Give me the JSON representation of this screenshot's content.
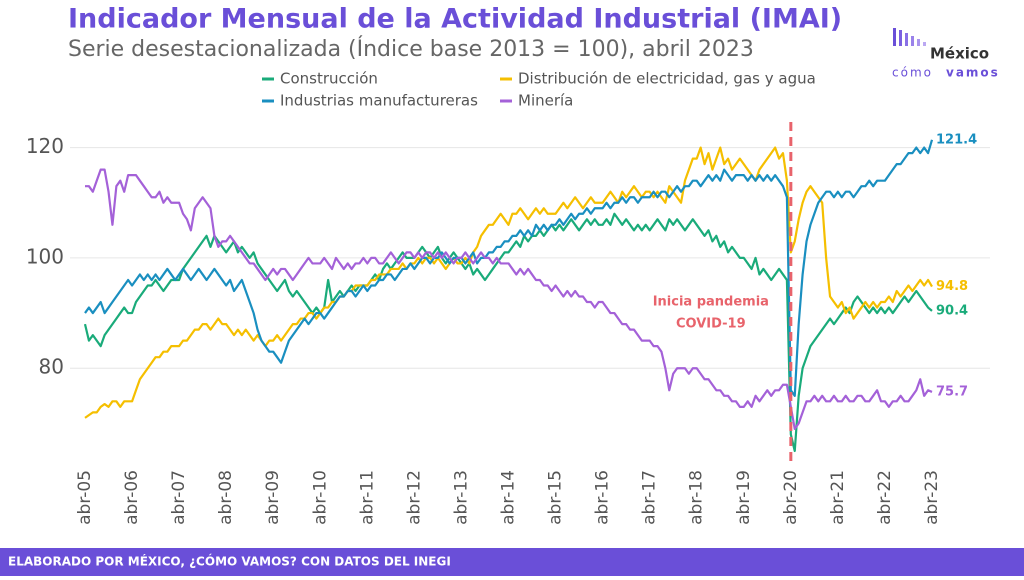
{
  "header": {
    "logo": {
      "top": "México",
      "bottom_left": "cómo",
      "bottom_right": "vamos"
    }
  },
  "footer": {
    "text": "ELABORADO POR MÉXICO, ¿CÓMO VAMOS? CON DATOS DEL INEGI"
  },
  "chart_data": {
    "type": "line",
    "title": "Indicador Mensual de la Actividad Industrial (IMAI)",
    "subtitle": "Serie desestacionalizada (Índice base 2013 = 100), abril 2023",
    "annotation": {
      "text": [
        "Inicia pandemia",
        "COVID-19"
      ],
      "x": "abr-20"
    },
    "ylim": [
      63,
      125
    ],
    "yticks": [
      80,
      100,
      120
    ],
    "grid": true,
    "categories": [
      "abr-05",
      null,
      null,
      null,
      null,
      null,
      null,
      null,
      null,
      null,
      null,
      null,
      "abr-06",
      null,
      null,
      null,
      null,
      null,
      null,
      null,
      null,
      null,
      null,
      null,
      "abr-07",
      null,
      null,
      null,
      null,
      null,
      null,
      null,
      null,
      null,
      null,
      null,
      "abr-08",
      null,
      null,
      null,
      null,
      null,
      null,
      null,
      null,
      null,
      null,
      null,
      "abr-09",
      null,
      null,
      null,
      null,
      null,
      null,
      null,
      null,
      null,
      null,
      null,
      "abr-10",
      null,
      null,
      null,
      null,
      null,
      null,
      null,
      null,
      null,
      null,
      null,
      "abr-11",
      null,
      null,
      null,
      null,
      null,
      null,
      null,
      null,
      null,
      null,
      null,
      "abr-12",
      null,
      null,
      null,
      null,
      null,
      null,
      null,
      null,
      null,
      null,
      null,
      "abr-13",
      null,
      null,
      null,
      null,
      null,
      null,
      null,
      null,
      null,
      null,
      null,
      "abr-14",
      null,
      null,
      null,
      null,
      null,
      null,
      null,
      null,
      null,
      null,
      null,
      "abr-15",
      null,
      null,
      null,
      null,
      null,
      null,
      null,
      null,
      null,
      null,
      null,
      "abr-16",
      null,
      null,
      null,
      null,
      null,
      null,
      null,
      null,
      null,
      null,
      null,
      "abr-17",
      null,
      null,
      null,
      null,
      null,
      null,
      null,
      null,
      null,
      null,
      null,
      "abr-18",
      null,
      null,
      null,
      null,
      null,
      null,
      null,
      null,
      null,
      null,
      null,
      "abr-19",
      null,
      null,
      null,
      null,
      null,
      null,
      null,
      null,
      null,
      null,
      null,
      "abr-20",
      null,
      null,
      null,
      null,
      null,
      null,
      null,
      null,
      null,
      null,
      null,
      "abr-21",
      null,
      null,
      null,
      null,
      null,
      null,
      null,
      null,
      null,
      null,
      null,
      "abr-22",
      null,
      null,
      null,
      null,
      null,
      null,
      null,
      null,
      null,
      null,
      null,
      "abr-23"
    ],
    "series": [
      {
        "name": "Construcción",
        "color": "#1aab7a",
        "values": [
          88,
          85,
          86,
          85,
          84,
          86,
          87,
          88,
          89,
          90,
          91,
          90,
          90,
          92,
          93,
          94,
          95,
          95,
          96,
          95,
          94,
          95,
          96,
          96,
          96,
          98,
          99,
          100,
          101,
          102,
          103,
          104,
          102,
          104,
          103,
          102,
          101,
          102,
          103,
          101,
          102,
          101,
          100,
          101,
          99,
          98,
          97,
          96,
          95,
          94,
          95,
          96,
          94,
          93,
          94,
          93,
          92,
          91,
          90,
          91,
          90,
          91,
          96,
          92,
          93,
          94,
          93,
          94,
          95,
          94,
          95,
          95,
          95,
          96,
          97,
          96,
          98,
          99,
          98,
          99,
          100,
          101,
          100,
          100,
          100,
          101,
          102,
          101,
          100,
          101,
          102,
          100,
          99,
          100,
          101,
          100,
          99,
          98,
          99,
          97,
          98,
          97,
          96,
          97,
          98,
          99,
          100,
          101,
          101,
          102,
          103,
          102,
          104,
          103,
          104,
          104,
          105,
          104,
          105,
          106,
          105,
          106,
          105,
          106,
          107,
          106,
          105,
          106,
          107,
          106,
          107,
          106,
          106,
          107,
          106,
          108,
          107,
          106,
          107,
          106,
          105,
          106,
          105,
          106,
          105,
          106,
          107,
          106,
          105,
          107,
          106,
          107,
          106,
          105,
          106,
          107,
          106,
          105,
          104,
          105,
          103,
          104,
          102,
          103,
          101,
          102,
          101,
          100,
          100,
          99,
          98,
          100,
          97,
          98,
          97,
          96,
          97,
          98,
          97,
          96,
          68,
          65,
          75,
          80,
          82,
          84,
          85,
          86,
          87,
          88,
          89,
          88,
          89,
          90,
          91,
          90,
          92,
          93,
          92,
          91,
          90,
          91,
          90,
          91,
          90,
          91,
          90,
          91,
          92,
          93,
          92,
          93,
          94,
          93,
          92,
          91,
          90.4
        ]
      },
      {
        "name": "Distribución de electricidad, gas y agua",
        "color": "#f5bf00",
        "values": [
          71,
          71.5,
          72,
          72,
          73,
          73.5,
          73,
          74,
          74,
          73,
          74,
          74,
          74,
          76,
          78,
          79,
          80,
          81,
          82,
          82,
          83,
          83,
          84,
          84,
          84,
          85,
          85,
          86,
          87,
          87,
          88,
          88,
          87,
          88,
          89,
          88,
          88,
          87,
          86,
          87,
          86,
          87,
          86,
          85,
          86,
          85,
          84,
          85,
          85,
          86,
          85,
          86,
          87,
          88,
          88,
          89,
          89,
          90,
          90,
          89,
          90,
          91,
          91,
          92,
          92,
          93,
          93,
          94,
          94,
          95,
          95,
          95,
          95,
          96,
          96,
          97,
          97,
          97,
          98,
          98,
          98,
          99,
          98,
          99,
          99,
          100,
          99,
          100,
          100,
          99,
          100,
          99,
          98,
          99,
          100,
          99,
          99,
          100,
          99,
          101,
          102,
          104,
          105,
          106,
          106,
          107,
          108,
          107,
          106,
          108,
          108,
          109,
          108,
          107,
          108,
          109,
          108,
          109,
          108,
          108,
          108,
          109,
          110,
          109,
          110,
          111,
          110,
          109,
          110,
          111,
          110,
          110,
          110,
          111,
          112,
          111,
          110,
          112,
          111,
          112,
          113,
          112,
          111,
          112,
          112,
          111,
          112,
          111,
          110,
          113,
          112,
          111,
          110,
          114,
          116,
          118,
          118,
          120,
          117,
          119,
          116,
          118,
          120,
          117,
          118,
          116,
          117,
          118,
          117,
          116,
          115,
          114,
          116,
          117,
          118,
          119,
          120,
          118,
          119,
          114,
          101,
          103,
          107,
          110,
          112,
          113,
          112,
          111,
          110,
          100,
          93,
          92,
          91,
          92,
          90,
          91,
          89,
          90,
          91,
          92,
          91,
          92,
          91,
          92,
          92,
          93,
          92,
          94,
          93,
          94,
          95,
          94,
          95,
          96,
          95,
          96,
          94.8
        ]
      },
      {
        "name": "Industrias manufactureras",
        "color": "#1a8fc0",
        "values": [
          90,
          91,
          90,
          91,
          92,
          90,
          91,
          92,
          93,
          94,
          95,
          96,
          95,
          96,
          97,
          96,
          97,
          96,
          97,
          96,
          97,
          98,
          97,
          96,
          97,
          98,
          97,
          96,
          97,
          98,
          97,
          96,
          97,
          98,
          97,
          96,
          95,
          96,
          94,
          95,
          96,
          94,
          92,
          90,
          87,
          85,
          84,
          83,
          83,
          82,
          81,
          83,
          85,
          86,
          87,
          88,
          89,
          88,
          89,
          90,
          90,
          89,
          90,
          91,
          92,
          93,
          93,
          94,
          94,
          93,
          94,
          95,
          94,
          95,
          95,
          96,
          96,
          97,
          97,
          96,
          97,
          98,
          98,
          99,
          98,
          99,
          100,
          100,
          99,
          100,
          100,
          101,
          100,
          99,
          100,
          100,
          100,
          99,
          100,
          101,
          99,
          100,
          100,
          101,
          101,
          102,
          102,
          103,
          103,
          104,
          104,
          105,
          104,
          105,
          104,
          106,
          105,
          106,
          105,
          106,
          106,
          107,
          106,
          107,
          108,
          107,
          108,
          108,
          109,
          108,
          109,
          109,
          109,
          110,
          109,
          110,
          110,
          111,
          110,
          111,
          111,
          110,
          111,
          111,
          111,
          112,
          111,
          112,
          112,
          111,
          112,
          113,
          112,
          113,
          113,
          114,
          114,
          113,
          114,
          115,
          114,
          115,
          114,
          116,
          115,
          114,
          115,
          115,
          115,
          114,
          115,
          114,
          115,
          114,
          115,
          114,
          115,
          114,
          113,
          111,
          76,
          75,
          88,
          97,
          103,
          106,
          108,
          110,
          111,
          112,
          112,
          111,
          112,
          111,
          112,
          112,
          111,
          112,
          113,
          113,
          114,
          113,
          114,
          114,
          114,
          115,
          116,
          117,
          117,
          118,
          119,
          119,
          120,
          119,
          120,
          119,
          121.4
        ]
      },
      {
        "name": "Minería",
        "color": "#a461d8",
        "values": [
          113,
          113,
          112,
          114,
          116,
          116,
          112,
          106,
          113,
          114,
          112,
          115,
          115,
          115,
          114,
          113,
          112,
          111,
          111,
          112,
          110,
          111,
          110,
          110,
          110,
          108,
          107,
          105,
          109,
          110,
          111,
          110,
          109,
          104,
          102,
          103,
          103,
          104,
          103,
          102,
          101,
          100,
          99,
          99,
          98,
          97,
          96,
          97,
          98,
          97,
          98,
          98,
          97,
          96,
          97,
          98,
          99,
          100,
          99,
          99,
          99,
          100,
          99,
          98,
          100,
          99,
          98,
          99,
          98,
          99,
          99,
          100,
          99,
          100,
          100,
          99,
          99,
          100,
          101,
          100,
          99,
          100,
          101,
          101,
          100,
          101,
          100,
          101,
          101,
          100,
          101,
          100,
          101,
          100,
          99,
          100,
          100,
          101,
          100,
          99,
          100,
          101,
          100,
          100,
          99,
          100,
          99,
          99,
          99,
          98,
          97,
          98,
          97,
          98,
          97,
          96,
          96,
          95,
          95,
          94,
          95,
          94,
          93,
          94,
          93,
          94,
          93,
          93,
          92,
          92,
          91,
          92,
          92,
          91,
          90,
          90,
          89,
          88,
          88,
          87,
          87,
          86,
          85,
          85,
          85,
          84,
          84,
          83,
          80,
          76,
          79,
          80,
          80,
          80,
          79,
          80,
          80,
          79,
          78,
          78,
          77,
          76,
          76,
          75,
          75,
          74,
          74,
          73,
          73,
          74,
          73,
          75,
          74,
          75,
          76,
          75,
          76,
          76,
          77,
          77,
          73,
          69,
          70,
          72,
          74,
          74,
          75,
          74,
          75,
          74,
          74,
          75,
          74,
          74,
          75,
          74,
          74,
          75,
          75,
          74,
          74,
          75,
          76,
          74,
          74,
          73,
          74,
          74,
          75,
          74,
          74,
          75,
          76,
          78,
          75,
          76,
          75.7
        ]
      }
    ]
  }
}
